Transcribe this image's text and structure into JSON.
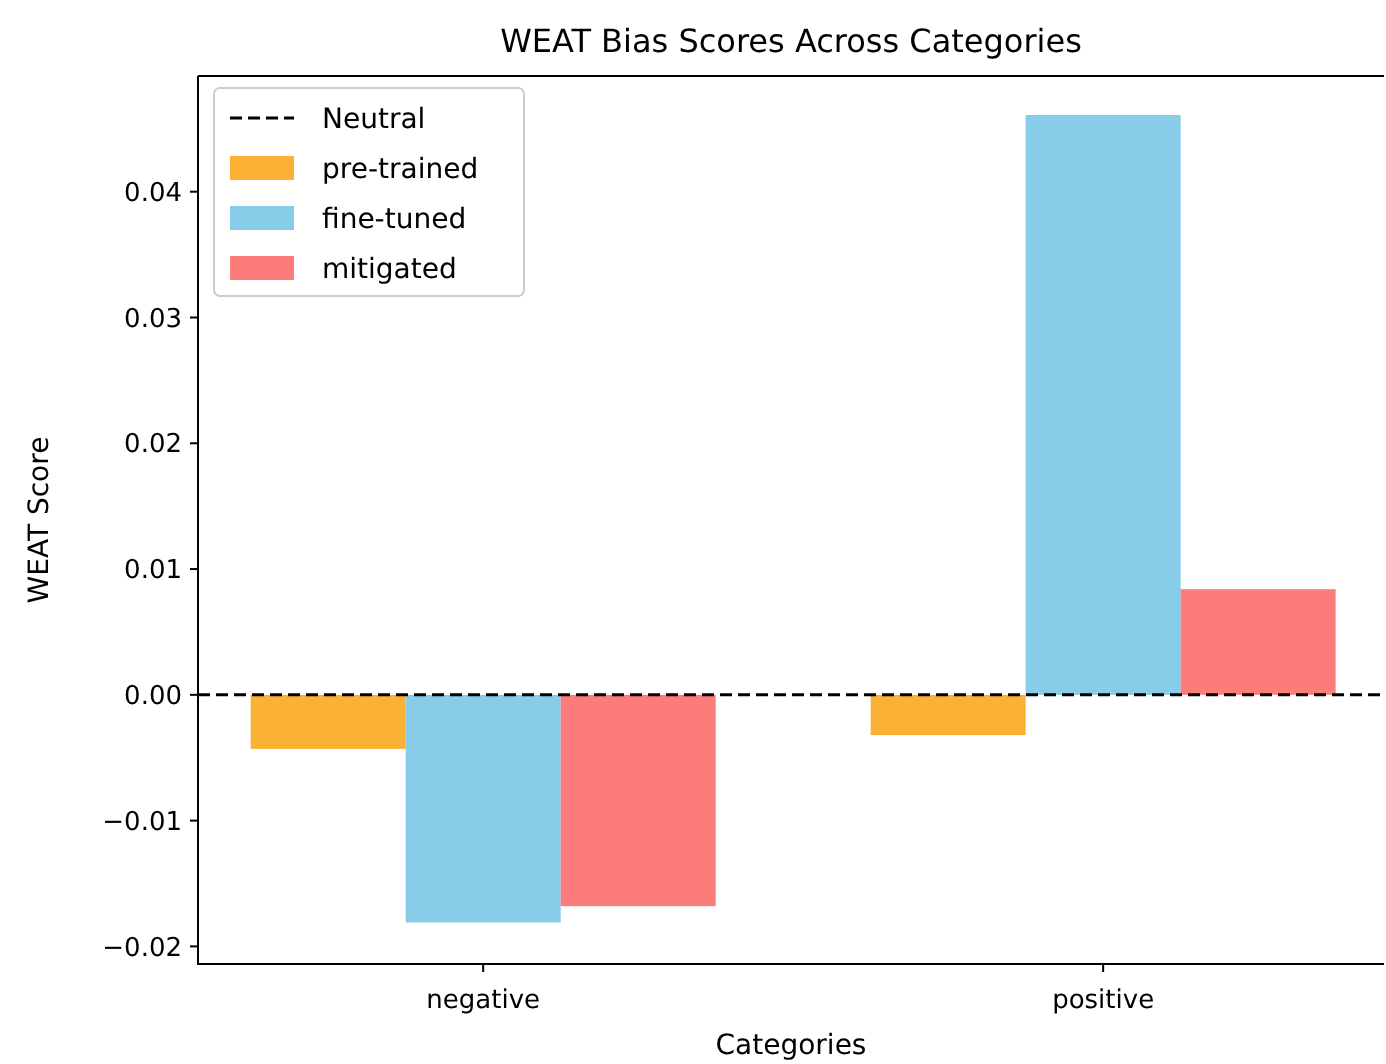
{
  "chart_data": {
    "type": "bar",
    "title": "WEAT Bias Scores Across Categories",
    "xlabel": "Categories",
    "ylabel": "WEAT Score",
    "categories": [
      "negative",
      "positive"
    ],
    "series": [
      {
        "name": "pre-trained",
        "color": "#fbb135",
        "values": [
          -0.0043,
          -0.0032
        ]
      },
      {
        "name": "fine-tuned",
        "color": "#87cce8",
        "values": [
          -0.0181,
          0.0461
        ]
      },
      {
        "name": "mitigated",
        "color": "#fc7b7b",
        "values": [
          -0.0168,
          0.0084
        ]
      }
    ],
    "ylim": [
      -0.0214,
      0.0492
    ],
    "yticks": [
      {
        "value": -0.02,
        "label": "−0.02"
      },
      {
        "value": -0.01,
        "label": "−0.01"
      },
      {
        "value": 0,
        "label": "0.00"
      },
      {
        "value": 0.01,
        "label": "0.01"
      },
      {
        "value": 0.02,
        "label": "0.02"
      },
      {
        "value": 0.03,
        "label": "0.03"
      },
      {
        "value": 0.04,
        "label": "0.04"
      }
    ],
    "ref_lines": [
      {
        "axis": "y",
        "value": 0,
        "label": "Neutral",
        "color": "#000000",
        "line_style": "dashed"
      }
    ],
    "legend": "top left",
    "grid": false
  }
}
